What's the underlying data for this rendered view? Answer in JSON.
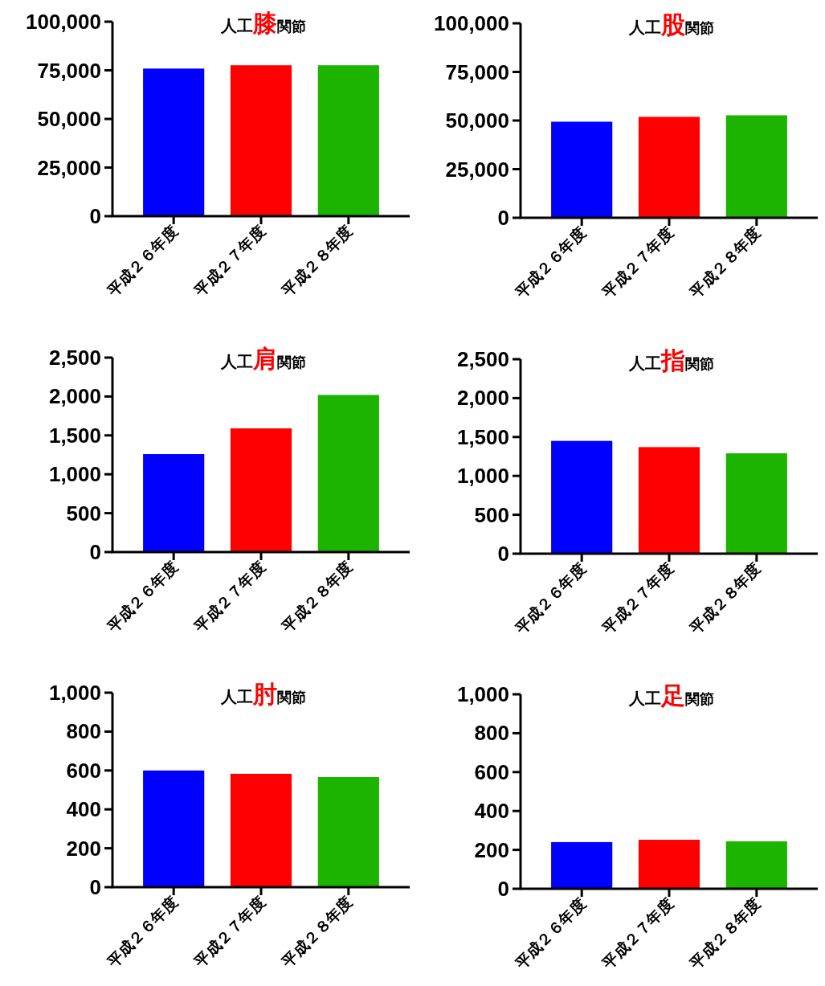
{
  "chart_data": [
    {
      "type": "bar",
      "title": "人工膝関節",
      "categories": [
        "平成２６年度",
        "平成２７年度",
        "平成２８年度"
      ],
      "values": [
        75900,
        77600,
        77600
      ],
      "colors": [
        "#0000ff",
        "#ff0000",
        "#1db400"
      ],
      "ylim": [
        0,
        100000
      ],
      "yticks": [
        0,
        {
          "value": 25000,
          "label": "25,000"
        },
        {
          "value": 50000,
          "label": "50,000"
        },
        {
          "value": 75000,
          "label": "75,000"
        },
        {
          "value": 100000,
          "label": "100,000"
        }
      ]
    },
    {
      "type": "bar",
      "title": "人工股関節",
      "categories": [
        "平成２６年度",
        "平成２７年度",
        "平成２８年度"
      ],
      "values": [
        49400,
        51900,
        52700
      ],
      "colors": [
        "#0000ff",
        "#ff0000",
        "#1db400"
      ],
      "ylim": [
        0,
        100000
      ],
      "yticks": [
        0,
        {
          "value": 25000,
          "label": "25,000"
        },
        {
          "value": 50000,
          "label": "50,000"
        },
        {
          "value": 75000,
          "label": "75,000"
        },
        {
          "value": 100000,
          "label": "100,000"
        }
      ]
    },
    {
      "type": "bar",
      "title": "人工肩関節",
      "categories": [
        "平成２６年度",
        "平成２７年度",
        "平成２８年度"
      ],
      "values": [
        1260,
        1590,
        2020
      ],
      "colors": [
        "#0000ff",
        "#ff0000",
        "#1db400"
      ],
      "ylim": [
        0,
        2500
      ],
      "yticks": [
        0,
        500,
        {
          "value": 1000,
          "label": "1,000"
        },
        {
          "value": 1500,
          "label": "1,500"
        },
        {
          "value": 2000,
          "label": "2,000"
        },
        {
          "value": 2500,
          "label": "2,500"
        }
      ]
    },
    {
      "type": "bar",
      "title": "人工指関節",
      "categories": [
        "平成２６年度",
        "平成２７年度",
        "平成２８年度"
      ],
      "values": [
        1450,
        1370,
        1290
      ],
      "colors": [
        "#0000ff",
        "#ff0000",
        "#1db400"
      ],
      "ylim": [
        0,
        2500
      ],
      "yticks": [
        0,
        500,
        {
          "value": 1000,
          "label": "1,000"
        },
        {
          "value": 1500,
          "label": "1,500"
        },
        {
          "value": 2000,
          "label": "2,000"
        },
        {
          "value": 2500,
          "label": "2,500"
        }
      ]
    },
    {
      "type": "bar",
      "title": "人工肘関節",
      "categories": [
        "平成２６年度",
        "平成２７年度",
        "平成２８年度"
      ],
      "values": [
        600,
        583,
        566
      ],
      "colors": [
        "#0000ff",
        "#ff0000",
        "#1db400"
      ],
      "ylim": [
        0,
        1000
      ],
      "yticks": [
        0,
        200,
        400,
        600,
        800,
        {
          "value": 1000,
          "label": "1,000"
        }
      ]
    },
    {
      "type": "bar",
      "title": "人工足関節",
      "categories": [
        "平成２６年度",
        "平成２７年度",
        "平成２８年度"
      ],
      "values": [
        240,
        252,
        244
      ],
      "colors": [
        "#0000ff",
        "#ff0000",
        "#1db400"
      ],
      "ylim": [
        0,
        1000
      ],
      "yticks": [
        0,
        200,
        400,
        600,
        800,
        {
          "value": 1000,
          "label": "1,000"
        }
      ]
    }
  ]
}
